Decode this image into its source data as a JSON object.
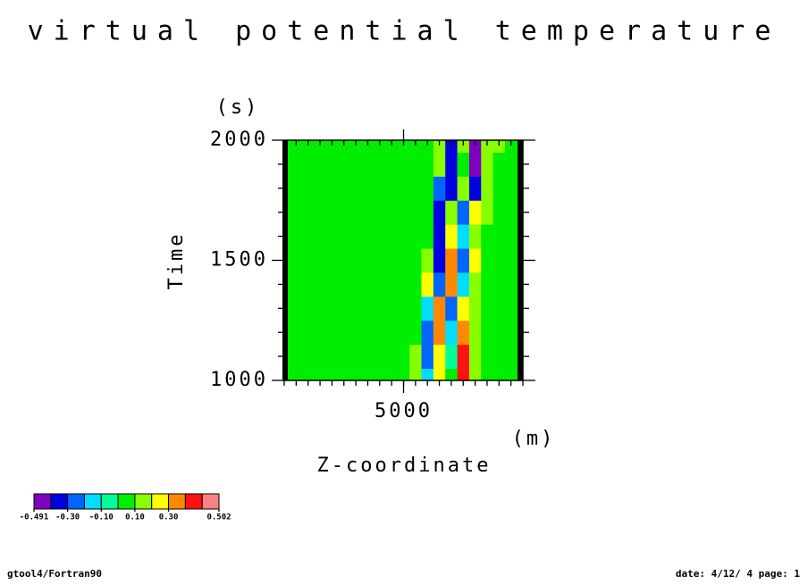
{
  "chart_data": {
    "type": "contour",
    "title": "virtual potential temperature",
    "x_label": "Z-coordinate",
    "x_unit": "(m)",
    "y_label": "Time",
    "y_unit": "(s)",
    "xlim": [
      0,
      10000
    ],
    "ylim": [
      1000,
      2000
    ],
    "xticks": [
      5000
    ],
    "yticks": [
      1000,
      1500,
      2000
    ],
    "xminorticks": [
      0,
      500,
      1000,
      1500,
      2000,
      2500,
      3000,
      3500,
      4000,
      4500,
      5000,
      5500,
      6000,
      6500,
      7000,
      7500,
      8000,
      8500,
      9000,
      9500,
      10000
    ],
    "yminorticks": [
      1100,
      1200,
      1300,
      1400,
      1600,
      1700,
      1800,
      1900
    ],
    "x": [
      0,
      500,
      1000,
      1500,
      2000,
      2500,
      3000,
      3500,
      4000,
      4500,
      5000,
      5500,
      6000,
      6500,
      7000,
      7500,
      8000,
      8500,
      9000,
      9500,
      10000
    ],
    "y": [
      1000,
      1100,
      1200,
      1300,
      1400,
      1500,
      1600,
      1700,
      1800,
      1900,
      2000
    ],
    "z": [
      [
        0.05,
        0.05,
        0.05,
        0.05,
        0.05,
        0.05,
        0.05,
        0.05,
        0.05,
        0.05,
        0.05,
        0.15,
        -0.15,
        0.25,
        0.05,
        0.45,
        0.15,
        0.05,
        0.05,
        0.05,
        0.05
      ],
      [
        0.05,
        0.05,
        0.05,
        0.05,
        0.05,
        0.05,
        0.05,
        0.05,
        0.05,
        0.05,
        0.05,
        0.15,
        -0.25,
        0.25,
        -0.05,
        0.45,
        0.15,
        0.05,
        0.05,
        0.05,
        0.05
      ],
      [
        0.05,
        0.05,
        0.05,
        0.05,
        0.05,
        0.05,
        0.05,
        0.05,
        0.05,
        0.05,
        0.05,
        0.05,
        -0.25,
        0.35,
        -0.15,
        0.35,
        0.15,
        0.05,
        0.05,
        0.05,
        0.05
      ],
      [
        0.05,
        0.05,
        0.05,
        0.05,
        0.05,
        0.05,
        0.05,
        0.05,
        0.05,
        0.05,
        0.05,
        0.05,
        -0.15,
        0.35,
        -0.25,
        0.25,
        0.15,
        0.05,
        0.05,
        0.05,
        0.05
      ],
      [
        0.05,
        0.05,
        0.05,
        0.05,
        0.05,
        0.05,
        0.05,
        0.05,
        0.05,
        0.05,
        0.05,
        0.05,
        0.25,
        -0.25,
        0.35,
        -0.15,
        0.15,
        0.05,
        0.05,
        0.05,
        0.05
      ],
      [
        0.05,
        0.05,
        0.05,
        0.05,
        0.05,
        0.05,
        0.05,
        0.05,
        0.05,
        0.05,
        0.05,
        0.05,
        0.15,
        -0.35,
        0.35,
        -0.25,
        0.25,
        0.05,
        0.05,
        0.05,
        0.05
      ],
      [
        0.05,
        0.05,
        0.05,
        0.05,
        0.05,
        0.05,
        0.05,
        0.05,
        0.05,
        0.05,
        0.05,
        0.05,
        0.05,
        -0.35,
        0.25,
        -0.15,
        0.15,
        0.05,
        0.05,
        0.05,
        0.05
      ],
      [
        0.05,
        0.05,
        0.05,
        0.05,
        0.05,
        0.05,
        0.05,
        0.05,
        0.05,
        0.05,
        0.05,
        0.05,
        0.05,
        -0.35,
        0.15,
        -0.25,
        0.25,
        0.15,
        0.05,
        0.05,
        0.05
      ],
      [
        0.05,
        0.05,
        0.05,
        0.05,
        0.05,
        0.05,
        0.05,
        0.05,
        0.05,
        0.05,
        0.05,
        0.05,
        0.05,
        -0.25,
        -0.35,
        0.15,
        -0.35,
        0.15,
        0.05,
        0.05,
        0.05
      ],
      [
        0.05,
        0.05,
        0.05,
        0.05,
        0.05,
        0.05,
        0.05,
        0.05,
        0.05,
        0.05,
        0.05,
        0.05,
        0.05,
        0.15,
        -0.35,
        0.05,
        -0.45,
        0.15,
        0.05,
        0.05,
        0.05
      ],
      [
        0.05,
        0.05,
        0.05,
        0.05,
        0.05,
        0.05,
        0.05,
        0.05,
        0.05,
        0.05,
        0.05,
        0.05,
        0.05,
        0.15,
        -0.35,
        0.15,
        -0.45,
        0.15,
        0.15,
        0.05,
        0.05
      ]
    ],
    "levels": [
      -0.491,
      -0.4,
      -0.3,
      -0.2,
      -0.1,
      0,
      0.1,
      0.2,
      0.3,
      0.4,
      0.5,
      0.502
    ],
    "colors": [
      "#7f00bf",
      "#0000e0",
      "#0066ff",
      "#00ddff",
      "#00ff99",
      "#00ee00",
      "#88ff00",
      "#ffff00",
      "#ff8800",
      "#ff1111",
      "#ff8080"
    ],
    "colorbar_ticks": [
      {
        "value": -0.491,
        "label": "-0.491"
      },
      {
        "value": -0.3,
        "label": "-0.30"
      },
      {
        "value": -0.1,
        "label": "-0.10"
      },
      {
        "value": 0.1,
        "label": "0.10"
      },
      {
        "value": 0.3,
        "label": "0.30"
      },
      {
        "value": 0.502,
        "label": "0.502"
      }
    ]
  },
  "footer": {
    "left": "gtool4/Fortran90",
    "right": "date: 4/12/ 4 page: 1"
  }
}
